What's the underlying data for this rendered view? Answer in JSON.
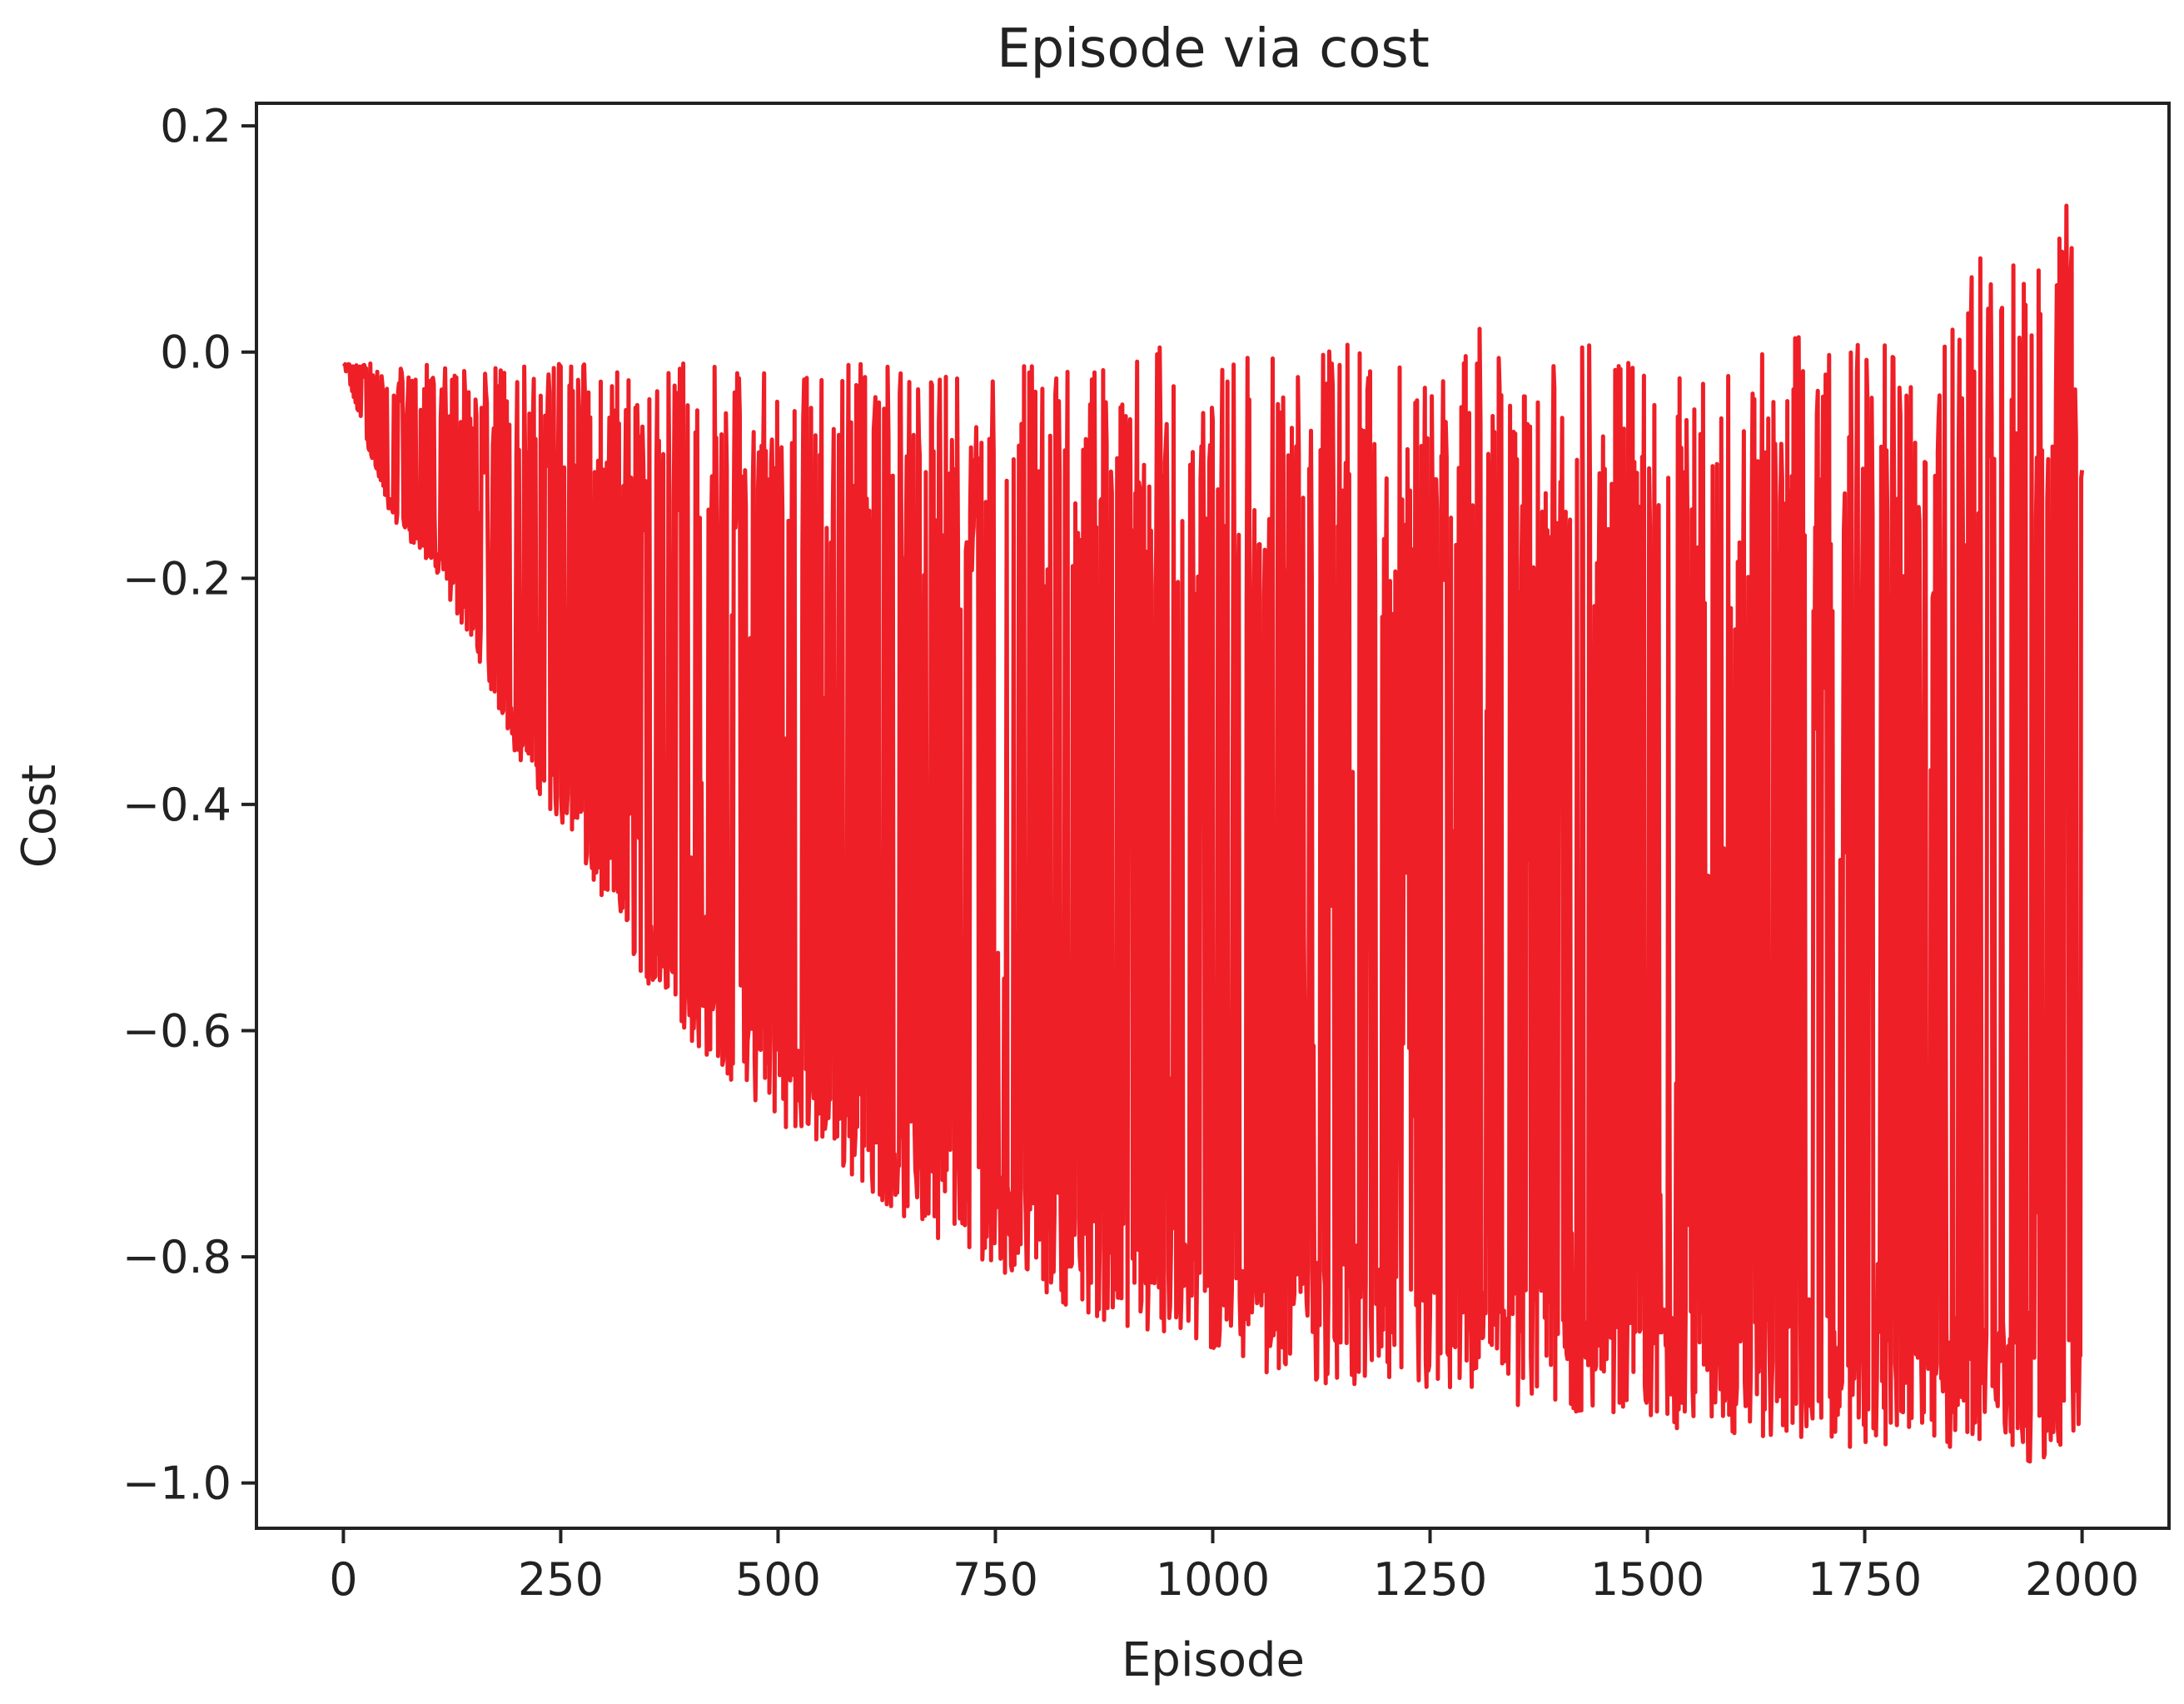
{
  "chart_data": {
    "type": "line",
    "title": "Episode via cost",
    "xlabel": "Episode",
    "ylabel": "Cost",
    "xlim": [
      -100,
      2100
    ],
    "ylim": [
      -1.04,
      0.22
    ],
    "xticks": [
      0,
      250,
      500,
      750,
      1000,
      1250,
      1500,
      1750,
      2000
    ],
    "xtick_labels": [
      "0",
      "250",
      "500",
      "750",
      "1000",
      "1250",
      "1500",
      "1750",
      "2000"
    ],
    "yticks": [
      0.2,
      0.0,
      -0.2,
      -0.4,
      -0.6,
      -0.8,
      -1.0
    ],
    "ytick_labels": [
      "0.2",
      "0.0",
      "−0.2",
      "−0.4",
      "−0.6",
      "−0.8",
      "−1.0"
    ],
    "grid": false,
    "series": [
      {
        "color": "#ee1f27",
        "x": [
          0,
          50,
          100,
          150,
          200,
          250,
          300,
          350,
          400,
          450,
          500,
          550,
          600,
          650,
          700,
          750,
          800,
          850,
          900,
          950,
          1000,
          1050,
          1100,
          1150,
          1200,
          1250,
          1300,
          1350,
          1400,
          1450,
          1500,
          1550,
          1600,
          1650,
          1700,
          1750,
          1800,
          1850,
          1900,
          1950,
          2000
        ],
        "y_max": [
          -0.01,
          -0.01,
          -0.01,
          -0.01,
          -0.01,
          -0.01,
          -0.01,
          -0.01,
          -0.01,
          -0.01,
          -0.01,
          -0.01,
          -0.01,
          -0.01,
          -0.02,
          -0.01,
          -0.01,
          -0.02,
          0.0,
          0.01,
          -0.01,
          0.0,
          -0.01,
          0.02,
          -0.01,
          -0.02,
          0.03,
          -0.01,
          0.0,
          0.01,
          -0.02,
          -0.02,
          -0.02,
          0.04,
          0.0,
          0.06,
          -0.03,
          0.07,
          0.09,
          0.13,
          0.16
        ],
        "y_min": [
          -0.01,
          -0.14,
          -0.19,
          -0.26,
          -0.36,
          -0.42,
          -0.49,
          -0.56,
          -0.61,
          -0.65,
          -0.68,
          -0.71,
          -0.74,
          -0.77,
          -0.79,
          -0.81,
          -0.83,
          -0.85,
          -0.87,
          -0.88,
          -0.89,
          -0.9,
          -0.91,
          -0.915,
          -0.92,
          -0.925,
          -0.93,
          -0.935,
          -0.94,
          -0.945,
          -0.95,
          -0.955,
          -0.96,
          -0.963,
          -0.966,
          -0.97,
          -0.973,
          -0.976,
          -0.979,
          -0.982,
          -0.985
        ]
      }
    ]
  }
}
